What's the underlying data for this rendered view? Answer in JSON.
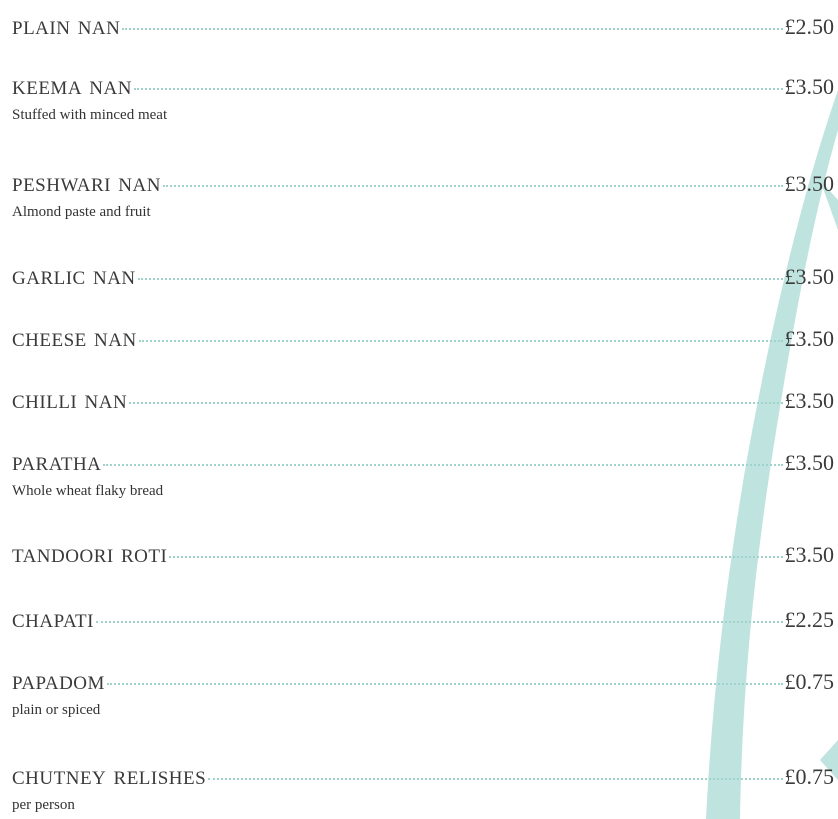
{
  "items": [
    {
      "name": "PLAIN NAN",
      "price": "£2.50"
    },
    {
      "name": "KEEMA NAN",
      "price": "£3.50",
      "description": "Stuffed with minced meat"
    },
    {
      "name": "PESHWARI NAN",
      "price": "£3.50",
      "description": "Almond paste and fruit"
    },
    {
      "name": "GARLIC NAN",
      "price": "£3.50"
    },
    {
      "name": "CHEESE NAN",
      "price": "£3.50"
    },
    {
      "name": "CHILLI NAN",
      "price": "£3.50"
    },
    {
      "name": "PARATHA",
      "price": "£3.50",
      "description": "Whole wheat flaky bread"
    },
    {
      "name": "TANDOORI ROTI",
      "price": "£3.50"
    },
    {
      "name": "CHAPATI",
      "price": "£2.25"
    },
    {
      "name": "PAPADOM",
      "price": "£0.75",
      "description": "plain or spiced"
    },
    {
      "name": "CHUTNEY RELISHES",
      "price": "£0.75",
      "description": "per person"
    }
  ]
}
